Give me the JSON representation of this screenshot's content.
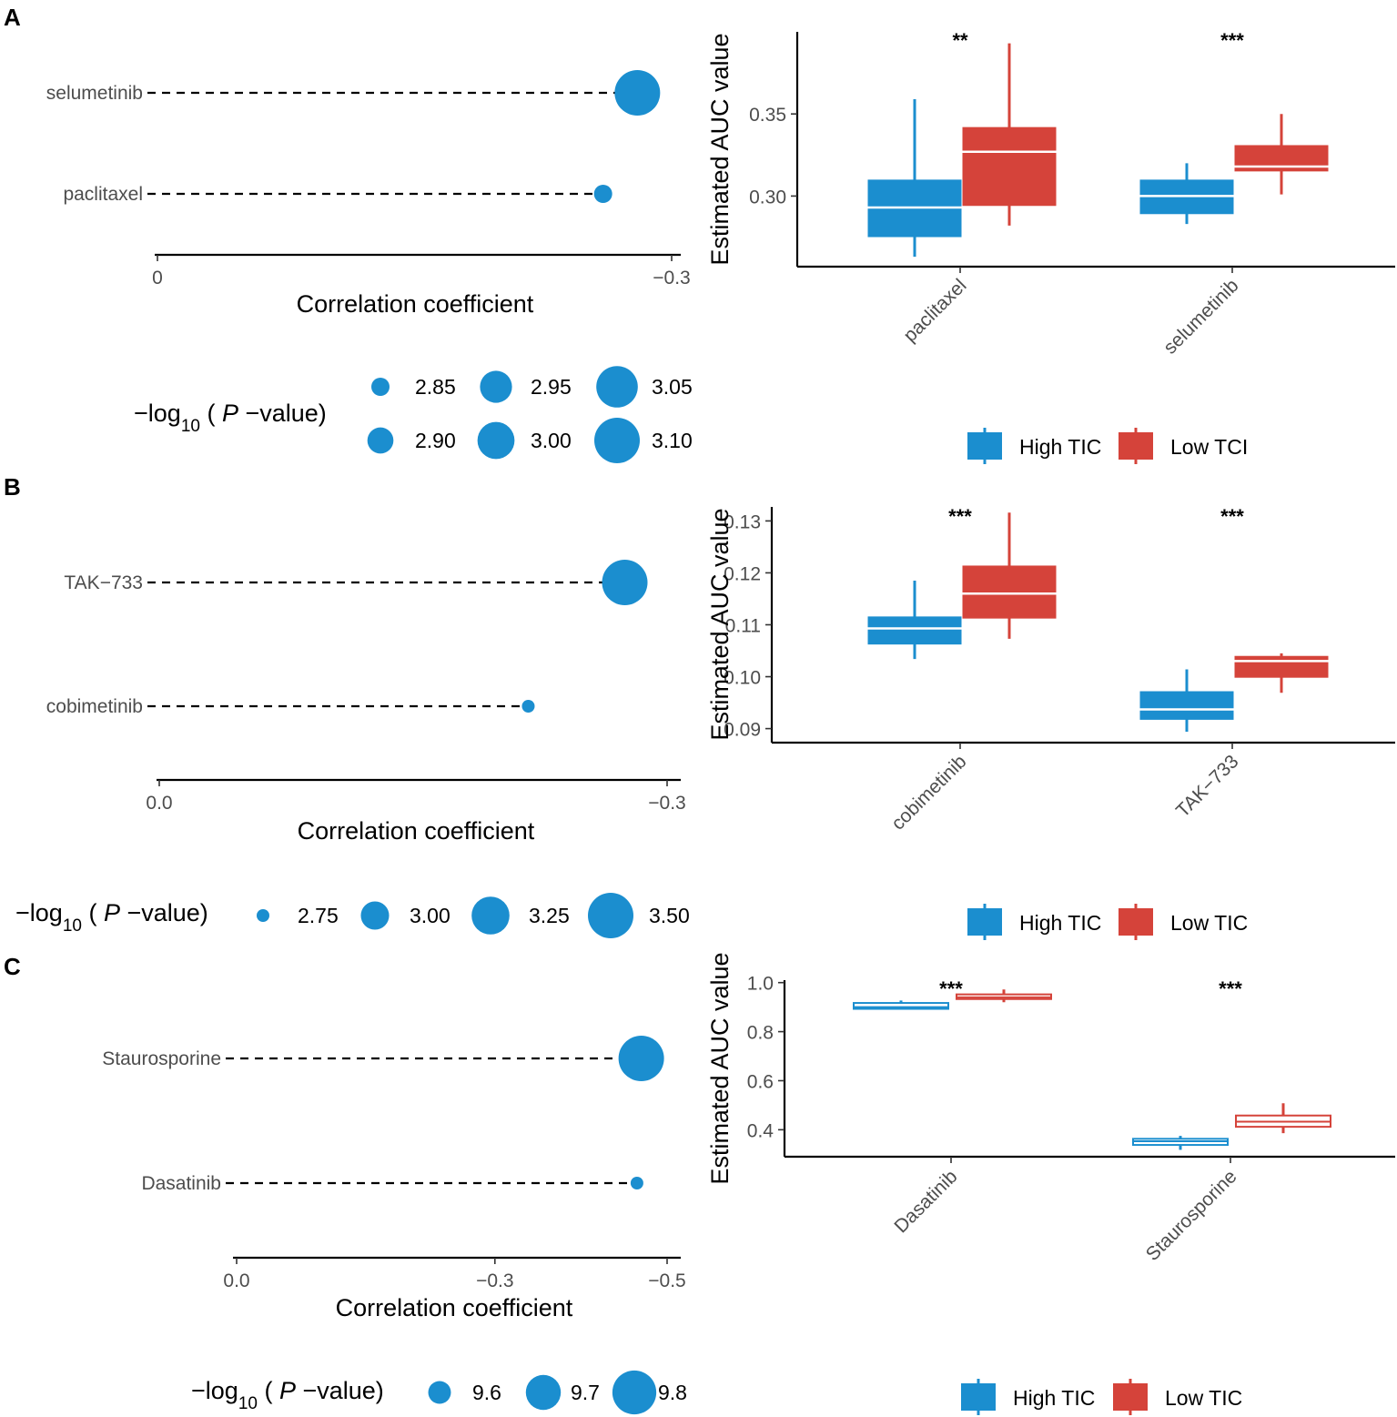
{
  "colors": {
    "high": "#1b8ecf",
    "low": "#d5433a",
    "dot": "#1b8ecf",
    "axis": "#000000"
  },
  "chart_data": [
    {
      "id": "A-lollipop",
      "type": "scatter",
      "panel": "A",
      "xlabel": "Correlation coefficient",
      "drugs": [
        "selumetinib",
        "paclitaxel"
      ],
      "values": [
        -0.28,
        -0.26
      ],
      "pvalue_size": [
        3.12,
        2.85
      ],
      "xlim": [
        0,
        -0.3
      ],
      "xticks": [
        {
          "value": 0,
          "label": "0"
        },
        {
          "value": -0.3,
          "label": "−0.3"
        }
      ],
      "legend_title": {
        "prefix": "−log",
        "sub": "10",
        "mid": " ( ",
        "ital": "P",
        "suffix": " −value)"
      },
      "legend_size_range": [
        2.85,
        3.1
      ],
      "legend": [
        {
          "value": 2.85,
          "label": "2.85"
        },
        {
          "value": 2.95,
          "label": "2.95"
        },
        {
          "value": 3.05,
          "label": "3.05"
        },
        {
          "value": 2.9,
          "label": "2.90"
        },
        {
          "value": 3.0,
          "label": "3.00"
        },
        {
          "value": 3.1,
          "label": "3.10"
        }
      ]
    },
    {
      "id": "A-box",
      "type": "box",
      "panel": "A",
      "ylabel": "Estimated AUC value",
      "ylim": [
        0.257,
        0.4
      ],
      "yticks": [
        {
          "value": 0.3,
          "label": "0.30"
        },
        {
          "value": 0.35,
          "label": "0.35"
        }
      ],
      "categories": [
        "paclitaxel",
        "selumetinib"
      ],
      "significance": [
        "**",
        "***"
      ],
      "series": [
        {
          "name": "High TIC",
          "color": "high",
          "boxes": [
            {
              "min": 0.263,
              "q1": 0.275,
              "median": 0.293,
              "q3": 0.31,
              "max": 0.359
            },
            {
              "min": 0.283,
              "q1": 0.289,
              "median": 0.3,
              "q3": 0.31,
              "max": 0.32
            }
          ]
        },
        {
          "name": "Low TCI",
          "color": "low",
          "boxes": [
            {
              "min": 0.282,
              "q1": 0.294,
              "median": 0.327,
              "q3": 0.342,
              "max": 0.393
            },
            {
              "min": 0.301,
              "q1": 0.315,
              "median": 0.318,
              "q3": 0.331,
              "max": 0.35
            }
          ]
        }
      ],
      "legend": [
        "High TIC",
        "Low TCI"
      ]
    },
    {
      "id": "B-lollipop",
      "type": "scatter",
      "panel": "B",
      "xlabel": "Correlation coefficient",
      "drugs": [
        "TAK−733",
        "cobimetinib"
      ],
      "values": [
        -0.275,
        -0.218
      ],
      "pvalue_size": [
        3.55,
        2.7
      ],
      "xlim": [
        0,
        -0.3
      ],
      "xticks": [
        {
          "value": 0,
          "label": "0.0"
        },
        {
          "value": -0.3,
          "label": "−0.3"
        }
      ],
      "legend_title": {
        "prefix": "−log",
        "sub": "10",
        "mid": " ( ",
        "ital": "P",
        "suffix": " −value)"
      },
      "legend_size_range": [
        2.75,
        3.5
      ],
      "legend": [
        {
          "value": 2.75,
          "label": "2.75"
        },
        {
          "value": 3.0,
          "label": "3.00"
        },
        {
          "value": 3.25,
          "label": "3.25"
        },
        {
          "value": 3.5,
          "label": "3.50"
        }
      ]
    },
    {
      "id": "B-box",
      "type": "box",
      "panel": "B",
      "ylabel": "Estimated AUC value",
      "ylim": [
        0.0873,
        0.1327
      ],
      "yticks": [
        {
          "value": 0.09,
          "label": "0.09"
        },
        {
          "value": 0.1,
          "label": "0.10"
        },
        {
          "value": 0.11,
          "label": "0.11"
        },
        {
          "value": 0.12,
          "label": "0.12"
        },
        {
          "value": 0.13,
          "label": "0.13"
        }
      ],
      "categories": [
        "cobimetinib",
        "TAK−733"
      ],
      "significance": [
        "***",
        "***"
      ],
      "series": [
        {
          "name": "High TIC",
          "color": "high",
          "boxes": [
            {
              "min": 0.1034,
              "q1": 0.1062,
              "median": 0.1093,
              "q3": 0.1116,
              "max": 0.1185
            },
            {
              "min": 0.0894,
              "q1": 0.0917,
              "median": 0.0937,
              "q3": 0.0972,
              "max": 0.1014
            }
          ]
        },
        {
          "name": "Low TIC",
          "color": "low",
          "boxes": [
            {
              "min": 0.1073,
              "q1": 0.1112,
              "median": 0.116,
              "q3": 0.1214,
              "max": 0.1316
            },
            {
              "min": 0.0969,
              "q1": 0.0998,
              "median": 0.103,
              "q3": 0.104,
              "max": 0.1045
            }
          ]
        }
      ],
      "legend": [
        "High TIC",
        "Low TIC"
      ]
    },
    {
      "id": "C-lollipop",
      "type": "scatter",
      "panel": "C",
      "xlabel": "Correlation coefficient",
      "drugs": [
        "Staurosporine",
        "Dasatinib"
      ],
      "values": [
        -0.47,
        -0.465
      ],
      "pvalue_size": [
        9.82,
        9.55
      ],
      "xlim": [
        0,
        -0.5
      ],
      "xticks": [
        {
          "value": 0,
          "label": "0.0"
        },
        {
          "value": -0.3,
          "label": "−0.3"
        },
        {
          "value": -0.5,
          "label": "−0.5"
        }
      ],
      "legend_title": {
        "prefix": "−log",
        "sub": "10",
        "mid": " ( ",
        "ital": "P",
        "suffix": " −value)"
      },
      "legend_size_range": [
        9.55,
        9.82
      ],
      "legend": [
        {
          "value": 9.6,
          "label": "9.6"
        },
        {
          "value": 9.7,
          "label": "9.7"
        },
        {
          "value": 9.8,
          "label": "9.8"
        }
      ]
    },
    {
      "id": "C-box",
      "type": "box",
      "panel": "C",
      "ylabel": "Estimated AUC value",
      "ylim": [
        0.29,
        1.01
      ],
      "yticks": [
        {
          "value": 0.4,
          "label": "0.4"
        },
        {
          "value": 0.6,
          "label": "0.6"
        },
        {
          "value": 0.8,
          "label": "0.8"
        },
        {
          "value": 1.0,
          "label": "1.0"
        }
      ],
      "categories": [
        "Dasatinib",
        "Staurosporine"
      ],
      "significance": [
        "***",
        "***"
      ],
      "series": [
        {
          "name": "High TIC",
          "color": "high",
          "boxes": [
            {
              "min": 0.89,
              "q1": 0.893,
              "median": 0.9,
              "q3": 0.917,
              "max": 0.927
            },
            {
              "min": 0.318,
              "q1": 0.338,
              "median": 0.353,
              "q3": 0.363,
              "max": 0.375
            }
          ]
        },
        {
          "name": "Low TIC",
          "color": "low",
          "boxes": [
            {
              "min": 0.92,
              "q1": 0.933,
              "median": 0.94,
              "q3": 0.952,
              "max": 0.972
            },
            {
              "min": 0.386,
              "q1": 0.412,
              "median": 0.433,
              "q3": 0.458,
              "max": 0.508
            }
          ]
        }
      ],
      "legend": [
        "High TIC",
        "Low TIC"
      ]
    }
  ]
}
